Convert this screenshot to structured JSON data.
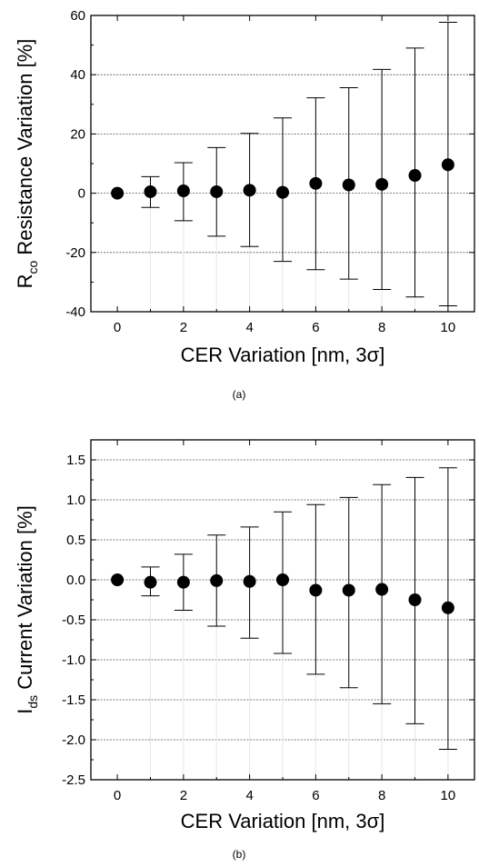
{
  "chart_data": [
    {
      "type": "scatter",
      "panel_label": "(a)",
      "xlabel": "CER Variation [nm, 3σ]",
      "ylabel": {
        "main": "R",
        "subscript": "co",
        "rest": " Resistance Variation [%]"
      },
      "xlim": [
        -0.8,
        10.8
      ],
      "ylim": [
        -40,
        60
      ],
      "xticks": [
        0,
        2,
        4,
        6,
        8,
        10
      ],
      "yticks": [
        -40,
        -20,
        0,
        20,
        40,
        60
      ],
      "xtick_labels": [
        "0",
        "2",
        "4",
        "6",
        "8",
        "10"
      ],
      "ytick_labels": [
        "-40",
        "-20",
        "0",
        "20",
        "40",
        "60"
      ],
      "gridlines": [
        -20,
        0,
        20,
        40
      ],
      "grid": "horizontal dashed",
      "series": [
        {
          "x": [
            0,
            1,
            2,
            3,
            4,
            5,
            6,
            7,
            8,
            9,
            10
          ],
          "y": [
            0,
            0.5,
            0.8,
            0.5,
            1.0,
            0.3,
            3.3,
            2.8,
            3.0,
            6.0,
            9.6
          ],
          "err_low": [
            0,
            -4.8,
            -9.3,
            -14.5,
            -18.0,
            -23.0,
            -25.8,
            -29.0,
            -32.5,
            -35.0,
            -38.0
          ],
          "err_high": [
            0,
            5.6,
            10.3,
            15.4,
            20.2,
            25.4,
            32.2,
            35.6,
            41.8,
            49.0,
            57.7
          ]
        }
      ]
    },
    {
      "type": "scatter",
      "panel_label": "(b)",
      "xlabel": "CER Variation [nm, 3σ]",
      "ylabel": {
        "main": "I",
        "subscript": "ds",
        "rest": " Current Variation [%]"
      },
      "xlim": [
        -0.8,
        10.8
      ],
      "ylim": [
        -2.5,
        1.75
      ],
      "xticks": [
        0,
        2,
        4,
        6,
        8,
        10
      ],
      "yticks": [
        -2.5,
        -2.0,
        -1.5,
        -1.0,
        -0.5,
        0.0,
        0.5,
        1.0,
        1.5
      ],
      "xtick_labels": [
        "0",
        "2",
        "4",
        "6",
        "8",
        "10"
      ],
      "ytick_labels": [
        "-2.5",
        "-2.0",
        "-1.5",
        "-1.0",
        "-0.5",
        "0.0",
        "0.5",
        "1.0",
        "1.5"
      ],
      "gridlines": [
        -2.0,
        -1.5,
        -1.0,
        -0.5,
        0.0,
        0.5,
        1.0,
        1.5
      ],
      "grid": "horizontal dashed",
      "series": [
        {
          "x": [
            0,
            1,
            2,
            3,
            4,
            5,
            6,
            7,
            8,
            9,
            10
          ],
          "y": [
            0,
            -0.03,
            -0.03,
            -0.01,
            -0.02,
            0,
            -0.13,
            -0.13,
            -0.12,
            -0.25,
            -0.35
          ],
          "err_low": [
            0,
            -0.2,
            -0.38,
            -0.58,
            -0.73,
            -0.92,
            -1.18,
            -1.35,
            -1.55,
            -1.8,
            -2.12
          ],
          "err_high": [
            0,
            0.16,
            0.32,
            0.56,
            0.66,
            0.85,
            0.94,
            1.03,
            1.19,
            1.28,
            1.4
          ]
        }
      ]
    }
  ]
}
